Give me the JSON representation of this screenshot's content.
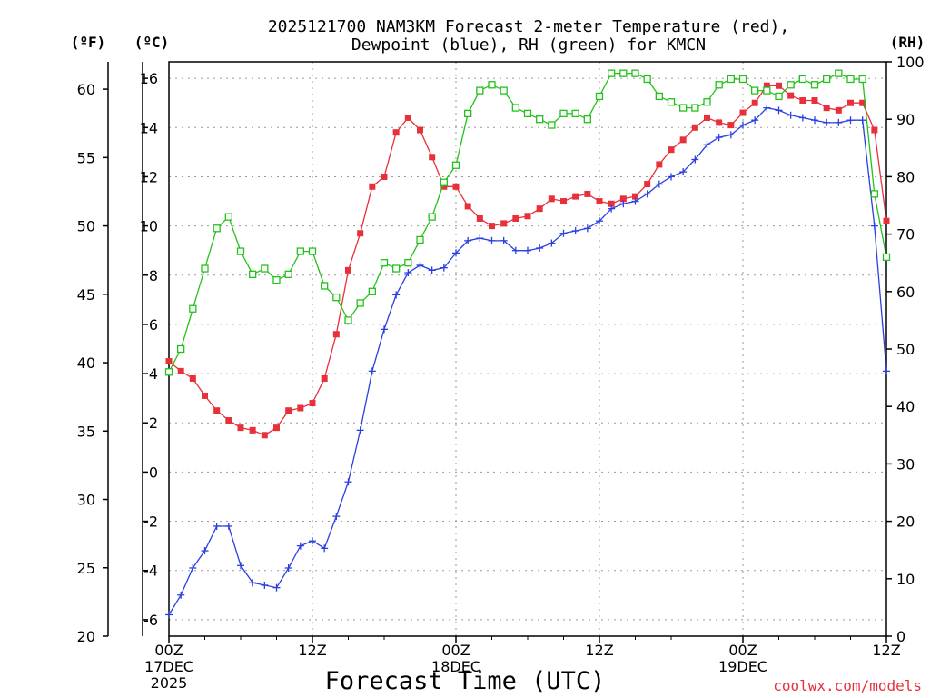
{
  "chart_data": {
    "type": "line",
    "title_line1": "2025121700 NAM3KM Forecast 2-meter Temperature (red),",
    "title_line2": "Dewpoint (blue), RH (green) for KMCN",
    "xlabel": "Forecast Time (UTC)",
    "credit": "coolwx.com/models",
    "units": {
      "fahrenheit": "(ºF)",
      "celsius": "(ºC)",
      "rh": "(RH)"
    },
    "x_range_hours": [
      0,
      60
    ],
    "celsius_range": [
      -6.67,
      16.67
    ],
    "fahrenheit_range": [
      20,
      62
    ],
    "rh_range": [
      0,
      100
    ],
    "x_ticks": [
      {
        "hour": 0,
        "lines": [
          "00Z",
          "17DEC",
          "2025"
        ]
      },
      {
        "hour": 12,
        "lines": [
          "12Z"
        ]
      },
      {
        "hour": 24,
        "lines": [
          "00Z",
          "18DEC"
        ]
      },
      {
        "hour": 36,
        "lines": [
          "12Z"
        ]
      },
      {
        "hour": 48,
        "lines": [
          "00Z",
          "19DEC"
        ]
      },
      {
        "hour": 60,
        "lines": [
          "12Z"
        ]
      }
    ],
    "celsius_ticks": [
      "16",
      "14",
      "12",
      "10",
      "8",
      "6",
      "4",
      "2",
      "0",
      "-2",
      "-4",
      "-6"
    ],
    "fahrenheit_ticks": [
      "60",
      "55",
      "50",
      "45",
      "40",
      "35",
      "30",
      "25",
      "20"
    ],
    "rh_ticks": [
      "100",
      "90",
      "80",
      "70",
      "60",
      "50",
      "40",
      "30",
      "20",
      "10",
      "0"
    ],
    "series": [
      {
        "name": "2-meter Temperature",
        "unit": "C",
        "color": "#e8303a",
        "marker": "filled-square",
        "hours": [
          0,
          1,
          2,
          3,
          4,
          5,
          6,
          7,
          8,
          9,
          10,
          11,
          12,
          13,
          14,
          15,
          16,
          17,
          18,
          19,
          20,
          21,
          22,
          23,
          24,
          25,
          26,
          27,
          28,
          29,
          30,
          31,
          32,
          33,
          34,
          35,
          36,
          37,
          38,
          39,
          40,
          41,
          42,
          43,
          44,
          45,
          46,
          47,
          48,
          49,
          50,
          51,
          52,
          53,
          54,
          55,
          56,
          57,
          58,
          59,
          60
        ],
        "values": [
          4.5,
          4.1,
          3.8,
          3.1,
          2.5,
          2.1,
          1.8,
          1.7,
          1.5,
          1.8,
          2.5,
          2.6,
          2.8,
          3.8,
          5.6,
          8.2,
          9.7,
          11.6,
          12.0,
          13.8,
          14.4,
          13.9,
          12.8,
          11.6,
          11.6,
          10.8,
          10.3,
          10.0,
          10.1,
          10.3,
          10.4,
          10.7,
          11.1,
          11.0,
          11.2,
          11.3,
          11.0,
          10.9,
          11.1,
          11.2,
          11.7,
          12.5,
          13.1,
          13.5,
          14.0,
          14.4,
          14.2,
          14.1,
          14.6,
          15.0,
          15.7,
          15.7,
          15.3,
          15.1,
          15.1,
          14.8,
          14.7,
          15.0,
          15.0,
          13.9,
          10.2
        ]
      },
      {
        "name": "Dewpoint",
        "unit": "C",
        "color": "#2a3fe0",
        "marker": "plus",
        "hours": [
          0,
          1,
          2,
          3,
          4,
          5,
          6,
          7,
          8,
          9,
          10,
          11,
          12,
          13,
          14,
          15,
          16,
          17,
          18,
          19,
          20,
          21,
          22,
          23,
          24,
          25,
          26,
          27,
          28,
          29,
          30,
          31,
          32,
          33,
          34,
          35,
          36,
          37,
          38,
          39,
          40,
          41,
          42,
          43,
          44,
          45,
          46,
          47,
          48,
          49,
          50,
          51,
          52,
          53,
          54,
          55,
          56,
          57,
          58,
          59,
          60
        ],
        "values": [
          -5.8,
          -5.0,
          -3.9,
          -3.2,
          -2.2,
          -2.2,
          -3.8,
          -4.5,
          -4.6,
          -4.7,
          -3.9,
          -3.0,
          -2.8,
          -3.1,
          -1.8,
          -0.4,
          1.7,
          4.1,
          5.8,
          7.2,
          8.1,
          8.4,
          8.2,
          8.3,
          8.9,
          9.4,
          9.5,
          9.4,
          9.4,
          9.0,
          9.0,
          9.1,
          9.3,
          9.7,
          9.8,
          9.9,
          10.2,
          10.7,
          10.9,
          11.0,
          11.3,
          11.7,
          12.0,
          12.2,
          12.7,
          13.3,
          13.6,
          13.7,
          14.1,
          14.3,
          14.8,
          14.7,
          14.5,
          14.4,
          14.3,
          14.2,
          14.2,
          14.3,
          14.3,
          10.0,
          4.1
        ]
      },
      {
        "name": "RH",
        "unit": "%",
        "color": "#22c21a",
        "marker": "open-square",
        "hours": [
          0,
          1,
          2,
          3,
          4,
          5,
          6,
          7,
          8,
          9,
          10,
          11,
          12,
          13,
          14,
          15,
          16,
          17,
          18,
          19,
          20,
          21,
          22,
          23,
          24,
          25,
          26,
          27,
          28,
          29,
          30,
          31,
          32,
          33,
          34,
          35,
          36,
          37,
          38,
          39,
          40,
          41,
          42,
          43,
          44,
          45,
          46,
          47,
          48,
          49,
          50,
          51,
          52,
          53,
          54,
          55,
          56,
          57,
          58,
          59,
          60
        ],
        "values": [
          46,
          50,
          57,
          64,
          71,
          73,
          67,
          63,
          64,
          62,
          63,
          67,
          67,
          61,
          59,
          55,
          58,
          60,
          65,
          64,
          65,
          69,
          73,
          79,
          82,
          91,
          95,
          96,
          95,
          92,
          91,
          90,
          89,
          91,
          91,
          90,
          94,
          98,
          98,
          98,
          97,
          94,
          93,
          92,
          92,
          93,
          96,
          97,
          97,
          95,
          95,
          94,
          96,
          97,
          96,
          97,
          98,
          97,
          97,
          77,
          66
        ]
      }
    ]
  }
}
